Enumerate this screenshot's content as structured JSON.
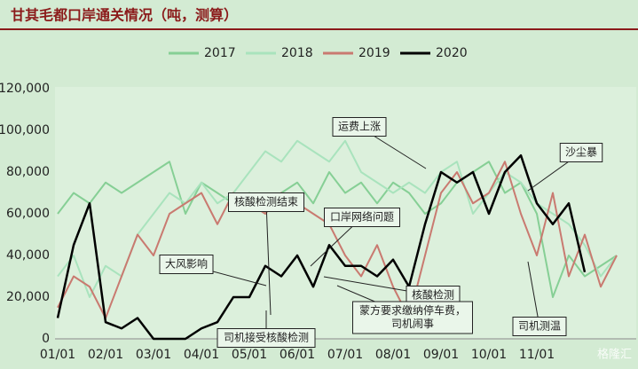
{
  "chart_data": {
    "type": "line",
    "title": "甘其毛都口岸通关情况（吨，测算）",
    "categories": [
      "01/01",
      null,
      null,
      "02/01",
      null,
      null,
      "03/01",
      null,
      null,
      "04/01",
      null,
      null,
      "05/01",
      null,
      null,
      "06/01",
      null,
      null,
      "07/01",
      null,
      null,
      "08/01",
      null,
      null,
      "09/01",
      null,
      null,
      "10/01",
      null,
      null,
      "11/01",
      null,
      null,
      null,
      null,
      null
    ],
    "series": [
      {
        "name": "2017",
        "color": "#86cf95",
        "values": [
          60000,
          70000,
          65000,
          75000,
          70000,
          75000,
          80000,
          85000,
          60000,
          75000,
          70000,
          65000,
          70000,
          60000,
          70000,
          75000,
          65000,
          80000,
          70000,
          75000,
          65000,
          75000,
          70000,
          60000,
          65000,
          75000,
          80000,
          85000,
          70000,
          75000,
          60000,
          20000,
          40000,
          30000,
          35000,
          40000
        ]
      },
      {
        "name": "2018",
        "color": "#a9e3bd",
        "values": [
          30000,
          40000,
          20000,
          35000,
          30000,
          50000,
          60000,
          70000,
          65000,
          75000,
          65000,
          70000,
          80000,
          90000,
          85000,
          95000,
          90000,
          85000,
          95000,
          80000,
          75000,
          70000,
          75000,
          70000,
          80000,
          85000,
          60000,
          70000,
          80000,
          75000,
          65000,
          60000,
          55000,
          45000,
          30000,
          40000
        ]
      },
      {
        "name": "2019",
        "color": "#c97a70",
        "values": [
          15000,
          30000,
          25000,
          10000,
          30000,
          50000,
          40000,
          60000,
          65000,
          70000,
          55000,
          70000,
          65000,
          60000,
          70000,
          65000,
          60000,
          55000,
          40000,
          30000,
          45000,
          25000,
          10000,
          40000,
          70000,
          80000,
          65000,
          70000,
          85000,
          60000,
          40000,
          70000,
          30000,
          50000,
          25000,
          40000
        ]
      },
      {
        "name": "2020",
        "color": "#000000",
        "values": [
          10000,
          45000,
          65000,
          8000,
          5000,
          10000,
          0,
          0,
          0,
          5000,
          8000,
          20000,
          20000,
          35000,
          30000,
          40000,
          25000,
          45000,
          35000,
          35000,
          30000,
          38000,
          25000,
          55000,
          80000,
          75000,
          80000,
          60000,
          80000,
          88000,
          65000,
          55000,
          65000,
          32000,
          null,
          null
        ]
      }
    ],
    "ylim": [
      0,
      120000
    ],
    "yticks": [
      0,
      {
        "value": 20000,
        "label": "20,000"
      },
      {
        "value": 40000,
        "label": "40,000"
      },
      {
        "value": 60000,
        "label": "60,000"
      },
      {
        "value": 80000,
        "label": "80,000"
      },
      {
        "value": 100000,
        "label": "100,000"
      },
      {
        "value": 120000,
        "label": "120,000"
      }
    ],
    "grid": false,
    "legend": "top",
    "annotations": [
      {
        "lines": [
          "运费上涨"
        ]
      },
      {
        "lines": [
          "沙尘暴"
        ]
      },
      {
        "lines": [
          "核酸检测结束"
        ]
      },
      {
        "lines": [
          "口岸网络问题"
        ]
      },
      {
        "lines": [
          "大风影响"
        ]
      },
      {
        "lines": [
          "核酸检测"
        ]
      },
      {
        "lines": [
          "蒙方要求缴纳停车费，",
          "司机闹事"
        ]
      },
      {
        "lines": [
          "司机接受核酸检测"
        ]
      },
      {
        "lines": [
          "司机测温"
        ]
      }
    ],
    "watermark": "格隆汇"
  }
}
